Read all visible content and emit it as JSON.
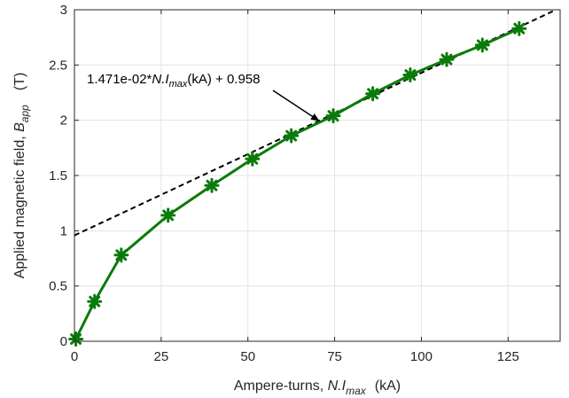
{
  "chart_data": {
    "type": "line",
    "title": "",
    "x_axis": {
      "label_prefix": "Ampere-turns, ",
      "label_var": "N.I",
      "label_sub": "max",
      "label_unit": "(kA)",
      "range": [
        0,
        140
      ],
      "ticks": [
        0,
        25,
        50,
        75,
        100,
        125
      ],
      "tick_labels": [
        "0",
        "25",
        "50",
        "75",
        "100",
        "125"
      ]
    },
    "y_axis": {
      "label_prefix": "Applied magnetic field, ",
      "label_var": "B",
      "label_sub": "app",
      "label_unit": "(T)",
      "range": [
        0,
        3
      ],
      "ticks": [
        0,
        0.5,
        1,
        1.5,
        2,
        2.5,
        3
      ],
      "tick_labels": [
        "0",
        "0.5",
        "1",
        "1.5",
        "2",
        "2.5",
        "3"
      ]
    },
    "grid": true,
    "series": [
      {
        "color": "#0b7a0b",
        "marker": "asterisk",
        "x": [
          0.4,
          5.8,
          13.5,
          27.0,
          39.6,
          51.3,
          62.5,
          74.6,
          86.0,
          96.8,
          107.3,
          117.6,
          128.2
        ],
        "y": [
          0.02,
          0.36,
          0.78,
          1.14,
          1.41,
          1.65,
          1.86,
          2.04,
          2.24,
          2.41,
          2.55,
          2.68,
          2.83
        ]
      }
    ],
    "fit_line": {
      "slope": 0.01471,
      "intercept": 0.958,
      "color": "#000000",
      "style": "dashed"
    },
    "annotation": {
      "prefix": "1.471e-02*",
      "var": "N.I",
      "sub": "max",
      "suffix": "(kA) + 0.958",
      "arrow_target": [
        70.5,
        1.995
      ]
    }
  }
}
